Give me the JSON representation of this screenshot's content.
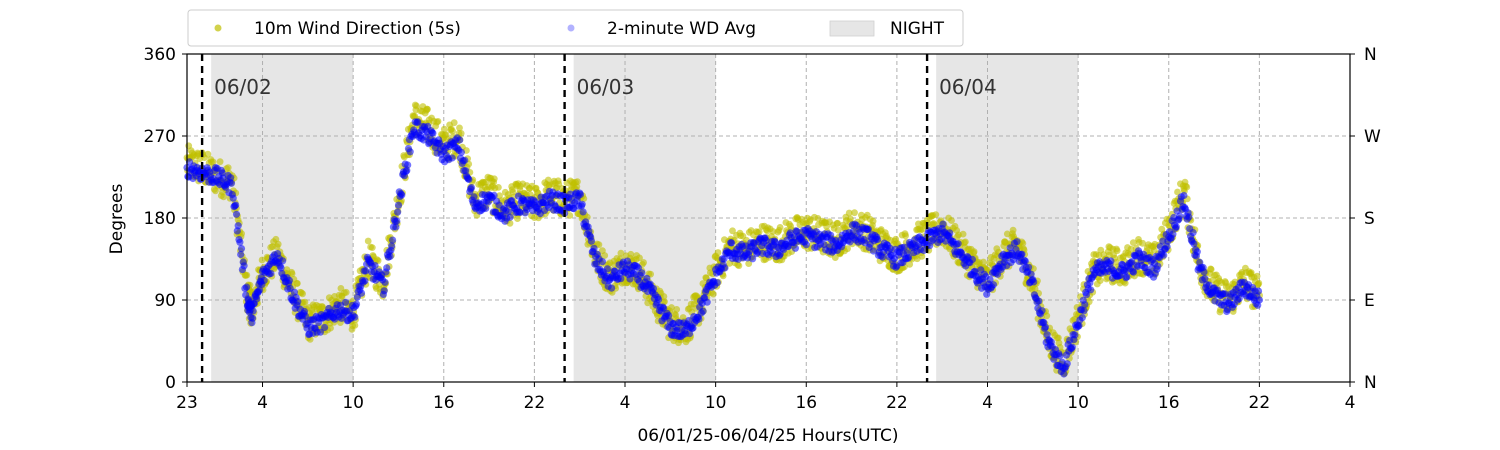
{
  "chart_data": {
    "type": "scatter",
    "title": "",
    "xlabel": "06/01/25-06/04/25  Hours(UTC)",
    "ylabel": "Degrees",
    "x_unit": "hours (UTC) after 06/01 00:00",
    "xlim": [
      23,
      100
    ],
    "ylim": [
      0,
      360
    ],
    "x_ticks": [
      {
        "value": 23,
        "label": "23"
      },
      {
        "value": 28,
        "label": "4"
      },
      {
        "value": 34,
        "label": "10"
      },
      {
        "value": 40,
        "label": "16"
      },
      {
        "value": 46,
        "label": "22"
      },
      {
        "value": 52,
        "label": "4"
      },
      {
        "value": 58,
        "label": "10"
      },
      {
        "value": 64,
        "label": "16"
      },
      {
        "value": 70,
        "label": "22"
      },
      {
        "value": 76,
        "label": "4"
      },
      {
        "value": 82,
        "label": "10"
      },
      {
        "value": 88,
        "label": "16"
      },
      {
        "value": 94,
        "label": "22"
      },
      {
        "value": 100,
        "label": "4"
      }
    ],
    "y_ticks": [
      {
        "value": 0,
        "label": "0"
      },
      {
        "value": 90,
        "label": "90"
      },
      {
        "value": 180,
        "label": "180"
      },
      {
        "value": 270,
        "label": "270"
      },
      {
        "value": 360,
        "label": "360"
      }
    ],
    "y2_ticks": [
      {
        "value": 0,
        "label": "N"
      },
      {
        "value": 90,
        "label": "E"
      },
      {
        "value": 180,
        "label": "S"
      },
      {
        "value": 270,
        "label": "W"
      },
      {
        "value": 360,
        "label": "N"
      }
    ],
    "grid": true,
    "legend_position": "top-left, above plot",
    "legend": [
      {
        "label": "10m Wind Direction (5s)",
        "marker": "dot",
        "color": "#bfbf00"
      },
      {
        "label": "2-minute WD Avg",
        "marker": "dot",
        "color": "#0000ff"
      },
      {
        "label": "NIGHT",
        "marker": "patch",
        "color": "#e6e6e6"
      }
    ],
    "night_periods": [
      [
        24.6,
        34.0
      ],
      [
        48.6,
        58.0
      ],
      [
        72.6,
        82.0
      ]
    ],
    "day_markers": [
      {
        "x": 24.0,
        "label": "06/02"
      },
      {
        "x": 48.0,
        "label": "06/03"
      },
      {
        "x": 72.0,
        "label": "06/04"
      }
    ],
    "series": [
      {
        "name": "10m Wind Direction (5s)",
        "color": "#bfbf00",
        "spread": 20,
        "x": [
          23,
          24,
          25,
          26,
          27,
          27.3,
          28,
          29,
          30,
          31,
          32,
          33,
          34,
          35,
          36,
          37,
          38,
          39,
          40,
          41,
          42,
          43,
          44,
          45,
          46,
          47,
          48,
          49,
          50,
          51,
          52,
          53,
          54,
          55,
          56,
          57,
          58,
          59,
          60,
          61,
          62,
          63,
          64,
          65,
          66,
          67,
          68,
          69,
          70,
          71,
          72,
          73,
          74,
          75,
          76,
          77,
          78,
          79,
          80,
          81,
          82,
          83,
          84,
          85,
          86,
          87,
          88,
          89,
          90,
          91,
          92,
          93,
          94
        ],
        "y": [
          240,
          235,
          225,
          220,
          95,
          80,
          120,
          140,
          100,
          65,
          70,
          85,
          75,
          135,
          110,
          200,
          290,
          280,
          260,
          270,
          200,
          210,
          190,
          200,
          195,
          205,
          200,
          205,
          140,
          115,
          130,
          120,
          90,
          65,
          60,
          85,
          120,
          150,
          145,
          155,
          150,
          160,
          165,
          160,
          155,
          170,
          165,
          150,
          140,
          150,
          160,
          170,
          150,
          130,
          110,
          140,
          150,
          110,
          50,
          20,
          70,
          120,
          130,
          125,
          140,
          130,
          165,
          210,
          130,
          100,
          90,
          110,
          95
        ]
      },
      {
        "name": "2-minute WD Avg",
        "color": "#0000ff",
        "spread": 10,
        "x": [
          23,
          24,
          25,
          26,
          27,
          27.3,
          28,
          29,
          30,
          31,
          32,
          33,
          34,
          35,
          36,
          37,
          38,
          39,
          40,
          41,
          42,
          43,
          44,
          45,
          46,
          47,
          48,
          49,
          50,
          51,
          52,
          53,
          54,
          55,
          56,
          57,
          58,
          59,
          60,
          61,
          62,
          63,
          64,
          65,
          66,
          67,
          68,
          69,
          70,
          71,
          72,
          73,
          74,
          75,
          76,
          77,
          78,
          79,
          80,
          81,
          82,
          83,
          84,
          85,
          86,
          87,
          88,
          89,
          90,
          91,
          92,
          93,
          94
        ],
        "y": [
          235,
          230,
          225,
          215,
          90,
          75,
          115,
          140,
          95,
          60,
          65,
          80,
          75,
          130,
          105,
          195,
          280,
          270,
          250,
          260,
          195,
          200,
          185,
          195,
          190,
          200,
          195,
          200,
          135,
          110,
          125,
          115,
          90,
          60,
          55,
          80,
          115,
          145,
          140,
          150,
          145,
          155,
          160,
          155,
          150,
          165,
          160,
          145,
          135,
          145,
          155,
          165,
          145,
          125,
          105,
          135,
          145,
          105,
          45,
          15,
          65,
          120,
          125,
          120,
          135,
          125,
          160,
          200,
          125,
          95,
          85,
          105,
          90
        ]
      }
    ]
  }
}
